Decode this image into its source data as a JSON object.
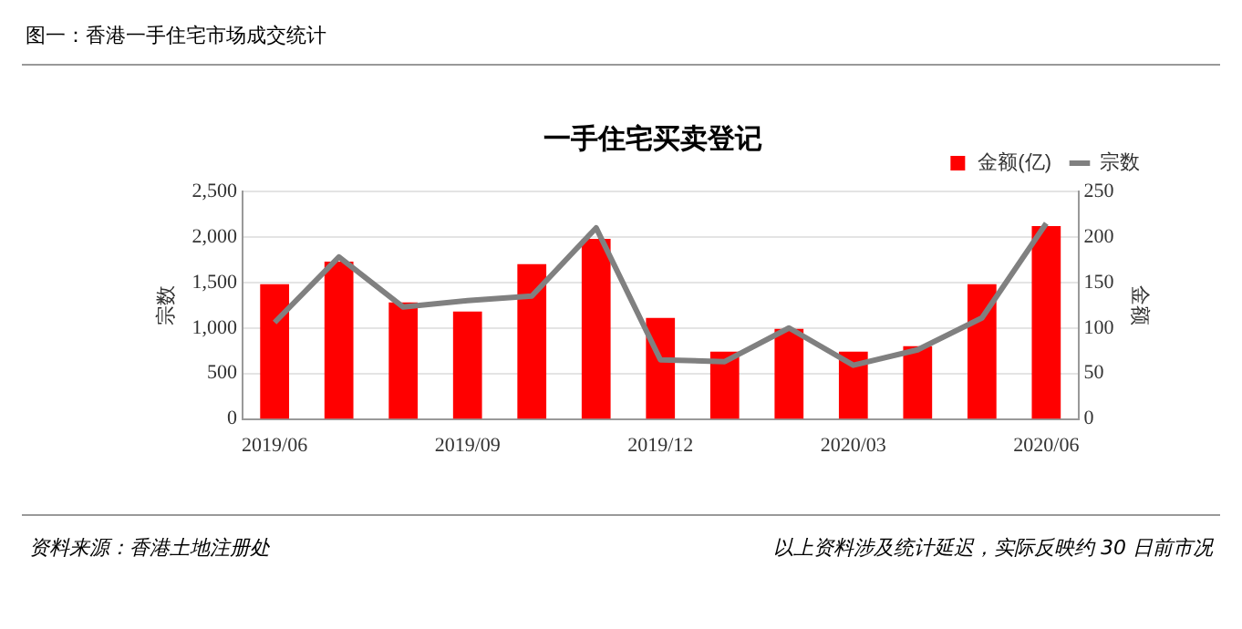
{
  "chart_data": {
    "type": "bar",
    "title": "图一：香港一手住宅市场成交统计",
    "subtitle": "一手住宅买卖登记",
    "ylabel": "宗数",
    "y2label": "金额",
    "categories": [
      "2019/06",
      null,
      null,
      "2019/09",
      null,
      null,
      "2019/12",
      null,
      null,
      "2020/03",
      null,
      null,
      "2020/06"
    ],
    "series": [
      {
        "name": "金额(亿)",
        "axis": "y2",
        "color": "#ff0000",
        "values": [
          148,
          173,
          128,
          118,
          170,
          198,
          111,
          74,
          99,
          74,
          80,
          148,
          212
        ]
      },
      {
        "name": "宗数",
        "type": "line",
        "color": "#808080",
        "values": [
          1060,
          1780,
          1230,
          1300,
          1350,
          2100,
          650,
          630,
          1000,
          590,
          760,
          1110,
          2150
        ]
      }
    ],
    "ylim": [
      0,
      2500
    ],
    "yticks": [
      {
        "value": 0,
        "label": "0"
      },
      {
        "value": 500,
        "label": "500"
      },
      {
        "value": 1000,
        "label": "1,000"
      },
      {
        "value": 1500,
        "label": "1,500"
      },
      {
        "value": 2000,
        "label": "2,000"
      },
      {
        "value": 2500,
        "label": "2,500"
      }
    ],
    "y2lim": [
      0,
      250
    ],
    "y2ticks": [
      0,
      50,
      100,
      150,
      200,
      250
    ],
    "grid": "y",
    "legend": "top right",
    "marker": "none",
    "line_style": "solid",
    "annotations": [
      "资料来源：香港土地注册处",
      "以上资料涉及统计延迟，实际反映约 30 日前市况"
    ]
  }
}
